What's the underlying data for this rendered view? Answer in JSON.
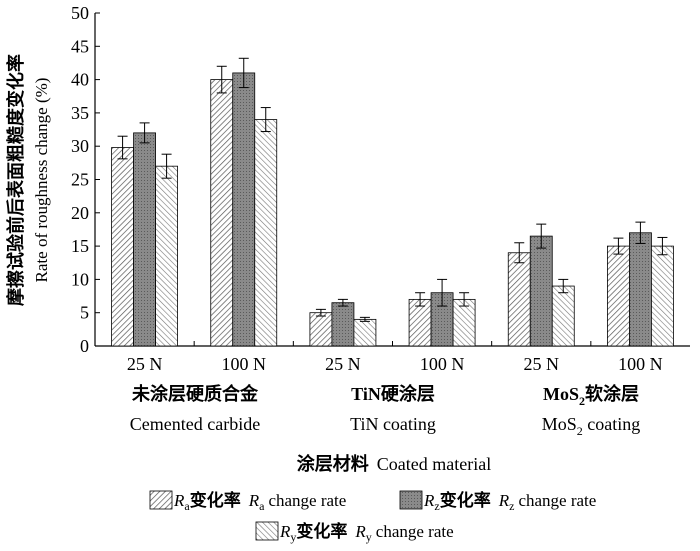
{
  "chart_data": {
    "type": "bar",
    "ylabel_cn": "摩擦试验前后表面粗糙度变化率",
    "ylabel_en": "Rate of roughness change (%)",
    "xlabel_cn": "涂层材料",
    "xlabel_en": "Coated material",
    "ylim": [
      0,
      50
    ],
    "yticks": [
      0,
      5,
      10,
      15,
      20,
      25,
      30,
      35,
      40,
      45,
      50
    ],
    "categories": [
      "25 N",
      "100 N",
      "25 N",
      "100 N",
      "25 N",
      "100 N"
    ],
    "groups": [
      {
        "cn": "未涂层硬质合金",
        "en": "Cemented carbide"
      },
      {
        "cn_main": "TiN",
        "cn_rest": "硬涂层",
        "en": "TiN coating"
      },
      {
        "cn_main": "MoS",
        "cn_sub": "2",
        "cn_rest": "软涂层",
        "en_main": "MoS",
        "en_sub": "2",
        "en_rest": " coating"
      }
    ],
    "series": [
      {
        "name": "Ra",
        "sym": "R",
        "sub": "a",
        "label_cn": "变化率",
        "label_en": "change rate",
        "color": "#aaaaaa",
        "values": [
          29.8,
          40.0,
          5.0,
          7.0,
          14.0,
          15.0
        ],
        "errors": [
          1.7,
          2.0,
          0.5,
          1.0,
          1.5,
          1.2
        ]
      },
      {
        "name": "Rz",
        "sym": "R",
        "sub": "z",
        "label_cn": "变化率",
        "label_en": "change rate",
        "color": "#666666",
        "values": [
          32.0,
          41.0,
          6.5,
          8.0,
          16.5,
          17.0
        ],
        "errors": [
          1.5,
          2.2,
          0.5,
          2.0,
          1.8,
          1.6
        ]
      },
      {
        "name": "Ry",
        "sym": "R",
        "sub": "y",
        "label_cn": "变化率",
        "label_en": "change rate",
        "color": "#cccccc",
        "values": [
          27.0,
          34.0,
          4.0,
          7.0,
          9.0,
          15.0
        ],
        "errors": [
          1.8,
          1.8,
          0.3,
          1.0,
          1.0,
          1.3
        ]
      }
    ]
  }
}
